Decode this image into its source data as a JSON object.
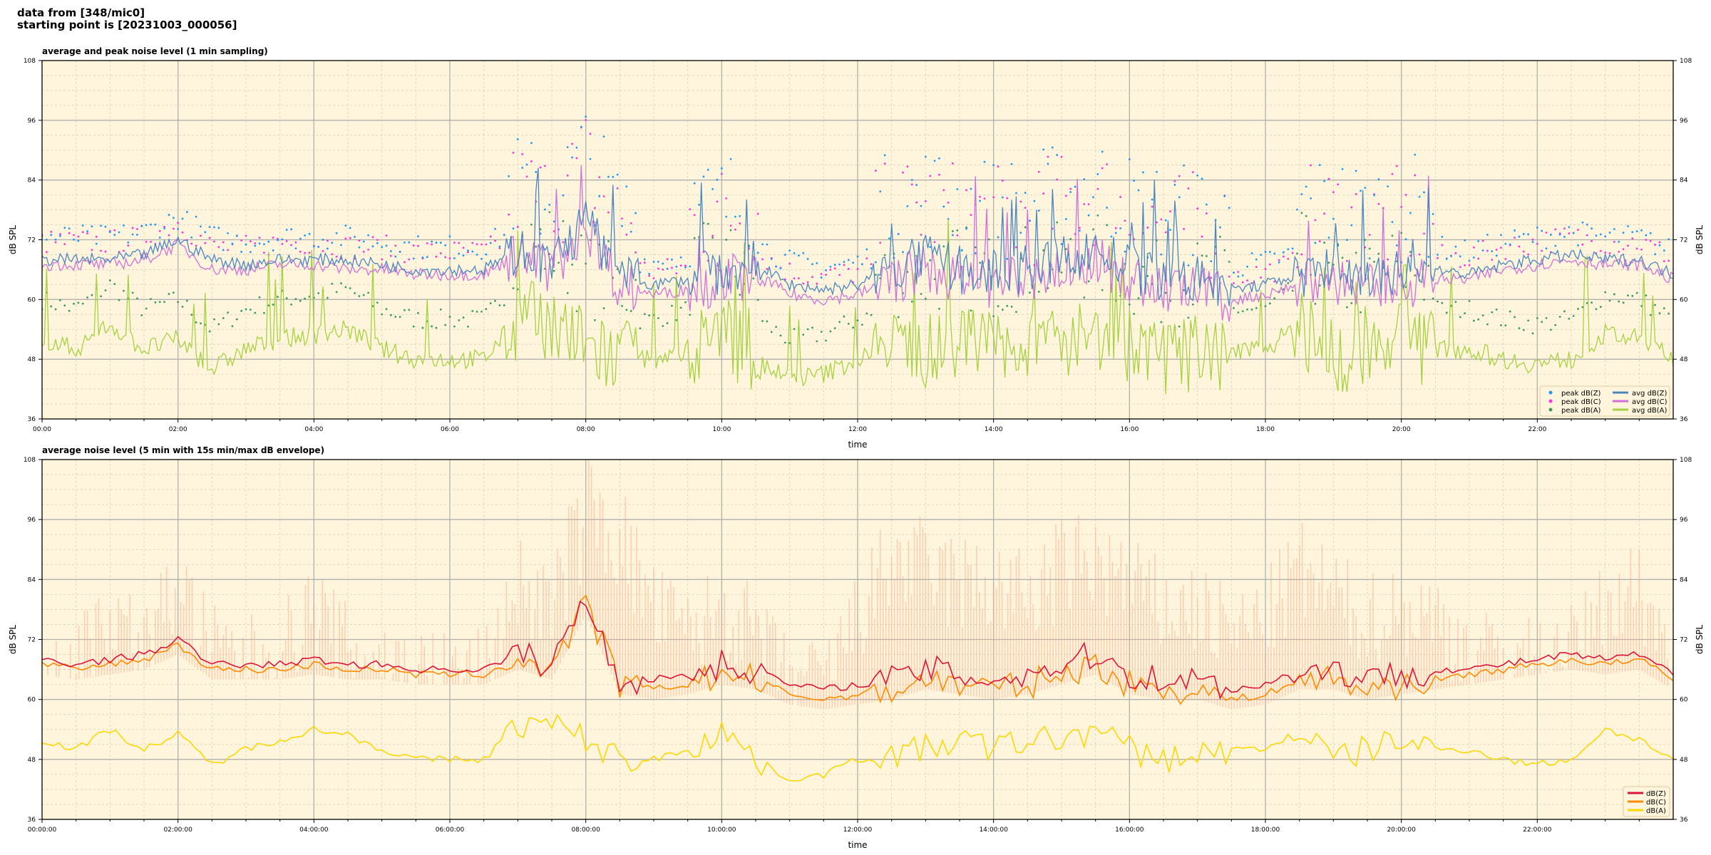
{
  "header": {
    "line1": "data from [348/mic0]",
    "line2": "starting point is [20231003_000056]"
  },
  "colors": {
    "bg": "#fff5dc",
    "z": "#4a86c0",
    "c": "#d070d8",
    "a": "#a6d140",
    "peak_z": "#2196f3",
    "peak_c": "#ff33dd",
    "peak_a": "#3c9a5a",
    "z5": "#dc143c",
    "c5": "#ff8c00",
    "a5": "#ffd700",
    "env": "#f4a582"
  },
  "chart_data": [
    {
      "type": "line",
      "title": "average and peak noise level (1 min sampling)",
      "xlabel": "time",
      "ylabel": "dB SPL",
      "ylim": [
        36,
        108
      ],
      "xlim_hours": [
        0,
        24
      ],
      "yticks": [
        "36",
        "48",
        "60",
        "72",
        "84",
        "96",
        "108"
      ],
      "xticks": [
        "00:00",
        "02:00",
        "04:00",
        "06:00",
        "08:00",
        "10:00",
        "12:00",
        "14:00",
        "16:00",
        "18:00",
        "20:00",
        "22:00"
      ],
      "grid": true,
      "legend_placement": "bottom-right",
      "legend": [
        "peak dB(Z)",
        "peak dB(C)",
        "peak dB(A)",
        "avg dB(Z)",
        "avg dB(C)",
        "avg dB(A)"
      ],
      "x_hours_step": 0.5,
      "series": [
        {
          "name": "avg dB(Z)",
          "values": [
            68,
            68,
            68,
            69,
            72,
            68,
            67,
            68,
            68,
            68,
            67,
            66,
            66,
            66,
            70,
            67,
            76,
            64,
            63,
            64,
            66,
            67,
            63,
            62,
            63,
            66,
            68,
            66,
            65,
            66,
            68,
            70,
            66,
            64,
            64,
            62,
            63,
            65,
            66,
            64,
            65,
            66,
            65,
            67,
            68,
            69,
            68,
            68,
            65
          ]
        },
        {
          "name": "avg dB(C)",
          "values": [
            67,
            67,
            67,
            68,
            71,
            66,
            66,
            67,
            67,
            66,
            66,
            65,
            65,
            65,
            69,
            66,
            75,
            63,
            61,
            62,
            64,
            65,
            61,
            60,
            61,
            64,
            66,
            64,
            63,
            64,
            66,
            68,
            64,
            62,
            62,
            60,
            61,
            63,
            64,
            62,
            63,
            64,
            64,
            66,
            67,
            68,
            67,
            67,
            64
          ]
        },
        {
          "name": "avg dB(A)",
          "values": [
            52,
            50,
            55,
            50,
            52,
            46,
            50,
            52,
            53,
            54,
            50,
            48,
            48,
            48,
            56,
            56,
            50,
            48,
            48,
            50,
            54,
            48,
            44,
            45,
            48,
            50,
            50,
            52,
            50,
            52,
            52,
            54,
            50,
            48,
            49,
            50,
            50,
            55,
            48,
            50,
            52,
            50,
            50,
            48,
            47,
            48,
            53,
            52,
            48
          ]
        }
      ]
    },
    {
      "type": "line",
      "title": "average noise level (5 min with 15s min/max dB envelope)",
      "xlabel": "time",
      "ylabel": "dB SPL",
      "ylim": [
        36,
        108
      ],
      "xlim_hours": [
        0,
        24
      ],
      "yticks": [
        "36",
        "48",
        "60",
        "72",
        "84",
        "96",
        "108"
      ],
      "xticks": [
        "00:00:00",
        "02:00:00",
        "04:00:00",
        "06:00:00",
        "08:00:00",
        "10:00:00",
        "12:00:00",
        "14:00:00",
        "16:00:00",
        "18:00:00",
        "20:00:00",
        "22:00:00"
      ],
      "grid": true,
      "legend_placement": "bottom-right",
      "legend": [
        "dB(Z)",
        "dB(C)",
        "dB(A)"
      ],
      "x_hours_step": 0.5,
      "series": [
        {
          "name": "dB(Z)",
          "values": [
            68,
            67,
            68,
            69,
            72,
            67,
            67,
            67,
            68,
            67,
            67,
            66,
            66,
            66,
            69,
            67,
            80,
            64,
            64,
            65,
            67,
            66,
            63,
            62,
            63,
            64,
            66,
            65,
            64,
            65,
            67,
            69,
            65,
            64,
            64,
            62,
            63,
            66,
            66,
            64,
            65,
            66,
            66,
            67,
            68,
            69,
            68,
            69,
            65
          ]
        },
        {
          "name": "dB(C)",
          "values": [
            67,
            66,
            67,
            68,
            71,
            66,
            66,
            66,
            67,
            66,
            66,
            65,
            65,
            65,
            68,
            66,
            79,
            63,
            62,
            63,
            65,
            64,
            61,
            60,
            61,
            62,
            64,
            63,
            62,
            63,
            65,
            67,
            63,
            62,
            62,
            60,
            61,
            64,
            64,
            62,
            63,
            64,
            65,
            66,
            67,
            68,
            67,
            68,
            64
          ]
        },
        {
          "name": "dB(A)",
          "values": [
            52,
            50,
            54,
            50,
            53,
            47,
            50,
            52,
            54,
            53,
            50,
            48,
            48,
            48,
            55,
            55,
            52,
            48,
            48,
            50,
            54,
            48,
            44,
            45,
            48,
            49,
            50,
            52,
            50,
            52,
            52,
            54,
            50,
            48,
            49,
            50,
            50,
            54,
            48,
            50,
            52,
            50,
            50,
            48,
            47,
            48,
            54,
            52,
            48
          ]
        },
        {
          "name": "envelope max",
          "values": [
            70,
            70,
            80,
            72,
            85,
            72,
            70,
            72,
            80,
            72,
            70,
            68,
            68,
            68,
            85,
            80,
            100,
            95,
            80,
            75,
            80,
            75,
            66,
            66,
            78,
            90,
            88,
            85,
            85,
            82,
            88,
            90,
            85,
            80,
            80,
            75,
            78,
            88,
            82,
            78,
            80,
            78,
            72,
            70,
            70,
            72,
            80,
            85,
            70
          ]
        }
      ]
    }
  ]
}
